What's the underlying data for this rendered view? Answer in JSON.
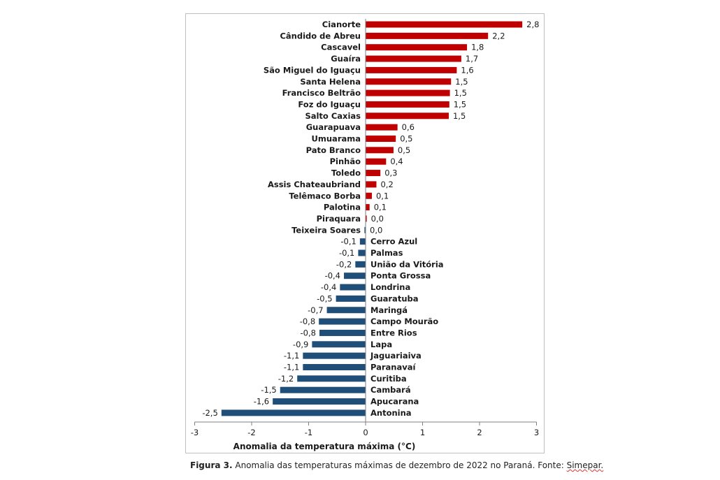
{
  "chart_data": {
    "type": "bar",
    "orientation": "horizontal",
    "title": "",
    "xlabel": "Anomalia da temperatura máxima (°C)",
    "ylabel": "",
    "xlim": [
      -3,
      3
    ],
    "x_ticks": [
      "-3",
      "-2",
      "-1",
      "0",
      "1",
      "2",
      "3"
    ],
    "grid": false,
    "positive_color": "#c00000",
    "negative_color": "#1f4e79",
    "categories": [
      "Cianorte",
      "Cândido de Abreu",
      "Cascavel",
      "Guaíra",
      "São Miguel do Iguaçu",
      "Santa Helena",
      "Francisco Beltrão",
      "Foz do Iguaçu",
      "Salto Caxias",
      "Guarapuava",
      "Umuarama",
      "Pato Branco",
      "Pinhão",
      "Toledo",
      "Assis Chateaubriand",
      "Telêmaco Borba",
      "Palotina",
      "Piraquara",
      "Teixeira Soares",
      "Cerro Azul",
      "Palmas",
      "União da Vitória",
      "Ponta Grossa",
      "Londrina",
      "Guaratuba",
      "Maringá",
      "Campo Mourão",
      "Entre Rios",
      "Lapa",
      "Jaguariaiva",
      "Paranavaí",
      "Curitiba",
      "Cambará",
      "Apucarana",
      "Antonina"
    ],
    "values": [
      2.75,
      2.15,
      1.78,
      1.68,
      1.6,
      1.5,
      1.48,
      1.47,
      1.46,
      0.56,
      0.53,
      0.49,
      0.36,
      0.26,
      0.19,
      0.11,
      0.07,
      0.02,
      -0.02,
      -0.1,
      -0.13,
      -0.18,
      -0.38,
      -0.45,
      -0.52,
      -0.68,
      -0.82,
      -0.81,
      -0.94,
      -1.1,
      -1.1,
      -1.2,
      -1.5,
      -1.63,
      -2.53
    ],
    "value_labels": [
      "2,8",
      "2,2",
      "1,8",
      "1,7",
      "1,6",
      "1,5",
      "1,5",
      "1,5",
      "1,5",
      "0,6",
      "0,5",
      "0,5",
      "0,4",
      "0,3",
      "0,2",
      "0,1",
      "0,1",
      "0,0",
      "0,0",
      "-0,1",
      "-0,1",
      "-0,2",
      "-0,4",
      "-0,4",
      "-0,5",
      "-0,7",
      "-0,8",
      "-0,8",
      "-0,9",
      "-1,1",
      "-1,1",
      "-1,2",
      "-1,5",
      "-1,6",
      "-2,5"
    ]
  },
  "caption": {
    "figure_label": "Figura 3.",
    "text": " Anomalia das temperaturas máximas de dezembro de 2022 no Paraná. Fonte: ",
    "source": "Simepar."
  }
}
